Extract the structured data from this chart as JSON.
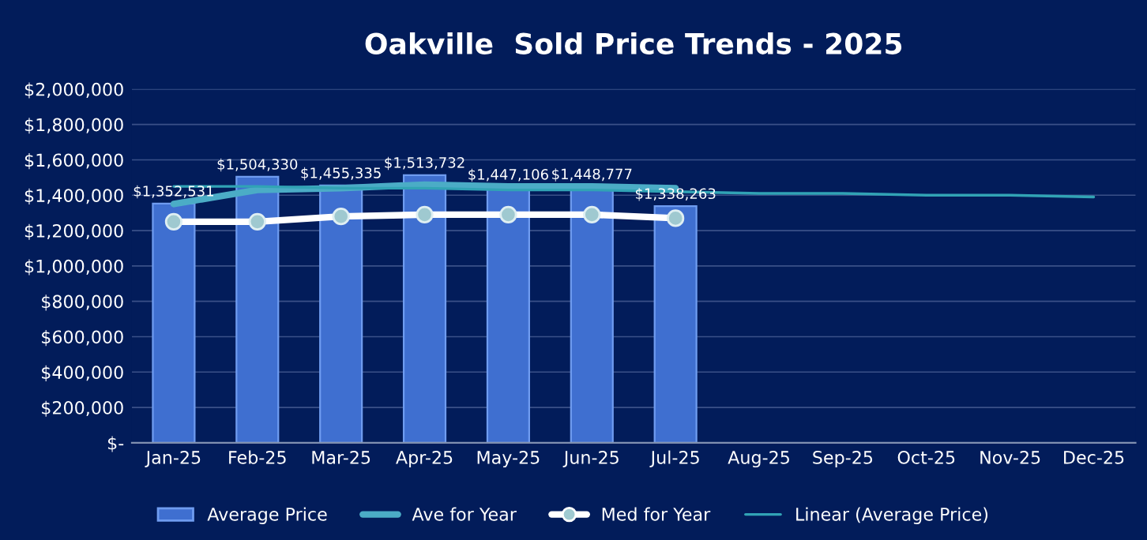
{
  "chart_data": {
    "type": "bar",
    "title": "Oakville  Sold Price Trends - 2025",
    "categories": [
      "Jan-25",
      "Feb-25",
      "Mar-25",
      "Apr-25",
      "May-25",
      "Jun-25",
      "Jul-25",
      "Aug-25",
      "Sep-25",
      "Oct-25",
      "Nov-25",
      "Dec-25"
    ],
    "series": [
      {
        "name": "Average Price",
        "color": "#3f6fd0",
        "values": [
          1352531,
          1504330,
          1455335,
          1513732,
          1447106,
          1448777,
          1338263,
          null,
          null,
          null,
          null,
          null
        ],
        "value_labels": [
          "$1,352,531",
          "$1,504,330",
          "$1,455,335",
          "$1,513,732",
          "$1,447,106",
          "$1,448,777",
          "$1,338,263",
          null,
          null,
          null,
          null,
          null
        ]
      },
      {
        "name": "Ave for Year",
        "type": "line",
        "color": "#4bacc6",
        "values": [
          1350000,
          1430000,
          1440000,
          1460000,
          1450000,
          1450000,
          1440000,
          null,
          null,
          null,
          null,
          null
        ]
      },
      {
        "name": "Med for Year",
        "type": "line",
        "color": "#ffffff",
        "marker": "circle",
        "values": [
          1250000,
          1250000,
          1280000,
          1290000,
          1290000,
          1290000,
          1270000,
          null,
          null,
          null,
          null,
          null
        ]
      },
      {
        "name": "Linear (Average Price)",
        "type": "line",
        "color": "#31a3b5",
        "values": [
          1450000,
          1450000,
          1440000,
          1440000,
          1430000,
          1430000,
          1420000,
          1410000,
          1410000,
          1400000,
          1400000,
          1390000
        ]
      }
    ],
    "ylim": [
      0,
      2000000
    ],
    "yticks": [
      {
        "value": 0,
        "label": "$-"
      },
      {
        "value": 200000,
        "label": "$200,000"
      },
      {
        "value": 400000,
        "label": "$400,000"
      },
      {
        "value": 600000,
        "label": "$600,000"
      },
      {
        "value": 800000,
        "label": "$800,000"
      },
      {
        "value": 1000000,
        "label": "$1,000,000"
      },
      {
        "value": 1200000,
        "label": "$1,200,000"
      },
      {
        "value": 1400000,
        "label": "$1,400,000"
      },
      {
        "value": 1600000,
        "label": "$1,600,000"
      },
      {
        "value": 1800000,
        "label": "$1,800,000"
      },
      {
        "value": 2000000,
        "label": "$2,000,000"
      }
    ],
    "grid": "y",
    "legend": "bottom"
  }
}
